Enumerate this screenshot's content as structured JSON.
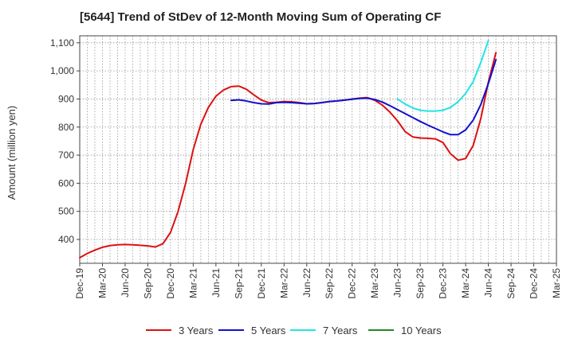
{
  "chart_data": {
    "type": "line",
    "title": "[5644]  Trend of StDev of 12-Month Moving Sum of Operating CF",
    "xlabel": "",
    "ylabel": "Amount (million yen)",
    "x_tick_labels": [
      "Dec-19",
      "Mar-20",
      "Jun-20",
      "Sep-20",
      "Dec-20",
      "Mar-21",
      "Jun-21",
      "Sep-21",
      "Dec-21",
      "Mar-22",
      "Jun-22",
      "Sep-22",
      "Dec-22",
      "Mar-23",
      "Jun-23",
      "Sep-23",
      "Dec-23",
      "Mar-24",
      "Jun-24",
      "Sep-24",
      "Dec-24",
      "Mar-25"
    ],
    "y_ticks": [
      400,
      500,
      600,
      700,
      800,
      900,
      1000,
      1100
    ],
    "y_tick_labels": [
      "400",
      "500",
      "600",
      "700",
      "800",
      "900",
      "1,000",
      "1,100"
    ],
    "ylim": [
      315,
      1125
    ],
    "grid": true,
    "legend_position": "bottom",
    "series": [
      {
        "name": "3 Years",
        "color": "#dd1111",
        "start_index": 0,
        "values": [
          335,
          350,
          362,
          372,
          378,
          381,
          382,
          381,
          379,
          377,
          373,
          385,
          425,
          500,
          600,
          720,
          810,
          870,
          910,
          932,
          944,
          946,
          935,
          915,
          896,
          887,
          888,
          891,
          890,
          887,
          883,
          884,
          887,
          891,
          893,
          896,
          900,
          903,
          905,
          895,
          878,
          853,
          822,
          784,
          765,
          761,
          760,
          758,
          745,
          705,
          682,
          688,
          735,
          830,
          960,
          1065
        ]
      },
      {
        "name": "5 Years",
        "color": "#1111cc",
        "start_index": 20,
        "values": [
          895,
          897,
          893,
          887,
          883,
          882,
          887,
          888,
          887,
          885,
          883,
          884,
          887,
          891,
          893,
          896,
          899,
          902,
          903,
          898,
          889,
          876,
          862,
          848,
          834,
          820,
          807,
          795,
          783,
          773,
          773,
          790,
          825,
          880,
          955,
          1040
        ]
      },
      {
        "name": "7 Years",
        "color": "#22e5e5",
        "start_index": 42,
        "values": [
          900,
          882,
          868,
          860,
          857,
          857,
          860,
          870,
          890,
          920,
          962,
          1030,
          1108
        ]
      },
      {
        "name": "10 Years",
        "color": "#228822",
        "start_index": 0,
        "values": []
      }
    ]
  }
}
